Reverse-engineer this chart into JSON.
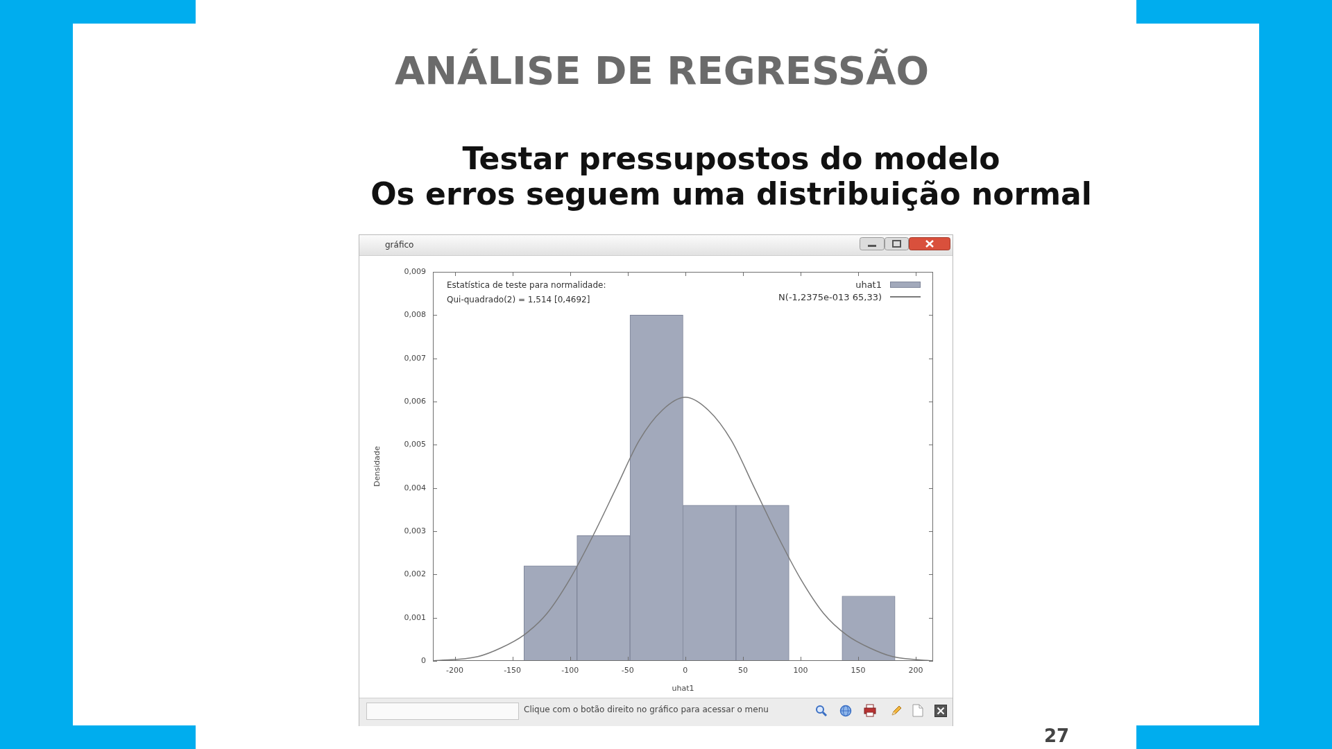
{
  "chart_data": {
    "type": "histogram",
    "title": "ANÁLISE DE REGRESSÃO",
    "subtitle": "Testar pressupostos do modelo\nOs erros seguem uma distribuição normal",
    "xlabel": "uhat1",
    "ylabel": "Densidade",
    "annotations": [
      "Estatística de teste para normalidade:",
      "Qui-quadrado(2) = 1,514 [0,4692]",
      "gráfico",
      "Clique com o botão direito no gráfico para acessar o menu",
      "27"
    ],
    "series": [
      {
        "name": "uhat1",
        "color": "#a2a9bb",
        "bins": [
          -140,
          -94,
          -48,
          -2,
          44,
          90,
          136,
          182
        ],
        "values": [
          0.0022,
          0.0029,
          0.008,
          0.0036,
          0.0036,
          0,
          0.0015
        ]
      },
      {
        "name": "N(-1,2375e-013 65,33)",
        "type": "line",
        "color": "#7a7a7a",
        "x": [
          -219,
          -180,
          -160,
          -140,
          -120,
          -100,
          -80,
          -60,
          -40,
          -20,
          0,
          20,
          40,
          60,
          80,
          100,
          120,
          140,
          160,
          180,
          215
        ],
        "values": [
          0,
          0.0001,
          0.0003,
          0.0006,
          0.0011,
          0.0019,
          0.0029,
          0.004,
          0.0051,
          0.0058,
          0.0061,
          0.0058,
          0.0051,
          0.004,
          0.0029,
          0.0019,
          0.0011,
          0.0006,
          0.0003,
          0.0001,
          0
        ]
      }
    ],
    "xlim": [
      -219,
      215
    ],
    "xticks": [
      -200,
      -150,
      -100,
      -50,
      0,
      50,
      100,
      150,
      200
    ],
    "ylim": [
      0,
      0.009
    ],
    "yticks": [
      0,
      {
        "value": 0.001,
        "label": "0,001"
      },
      {
        "value": 0.002,
        "label": "0,002"
      },
      {
        "value": 0.003,
        "label": "0,003"
      },
      {
        "value": 0.004,
        "label": "0,004"
      },
      {
        "value": 0.005,
        "label": "0,005"
      },
      {
        "value": 0.006,
        "label": "0,006"
      },
      {
        "value": 0.007,
        "label": "0,007"
      },
      {
        "value": 0.008,
        "label": "0,008"
      },
      {
        "value": 0.009,
        "label": "0,009"
      }
    ],
    "legend": "top right"
  }
}
